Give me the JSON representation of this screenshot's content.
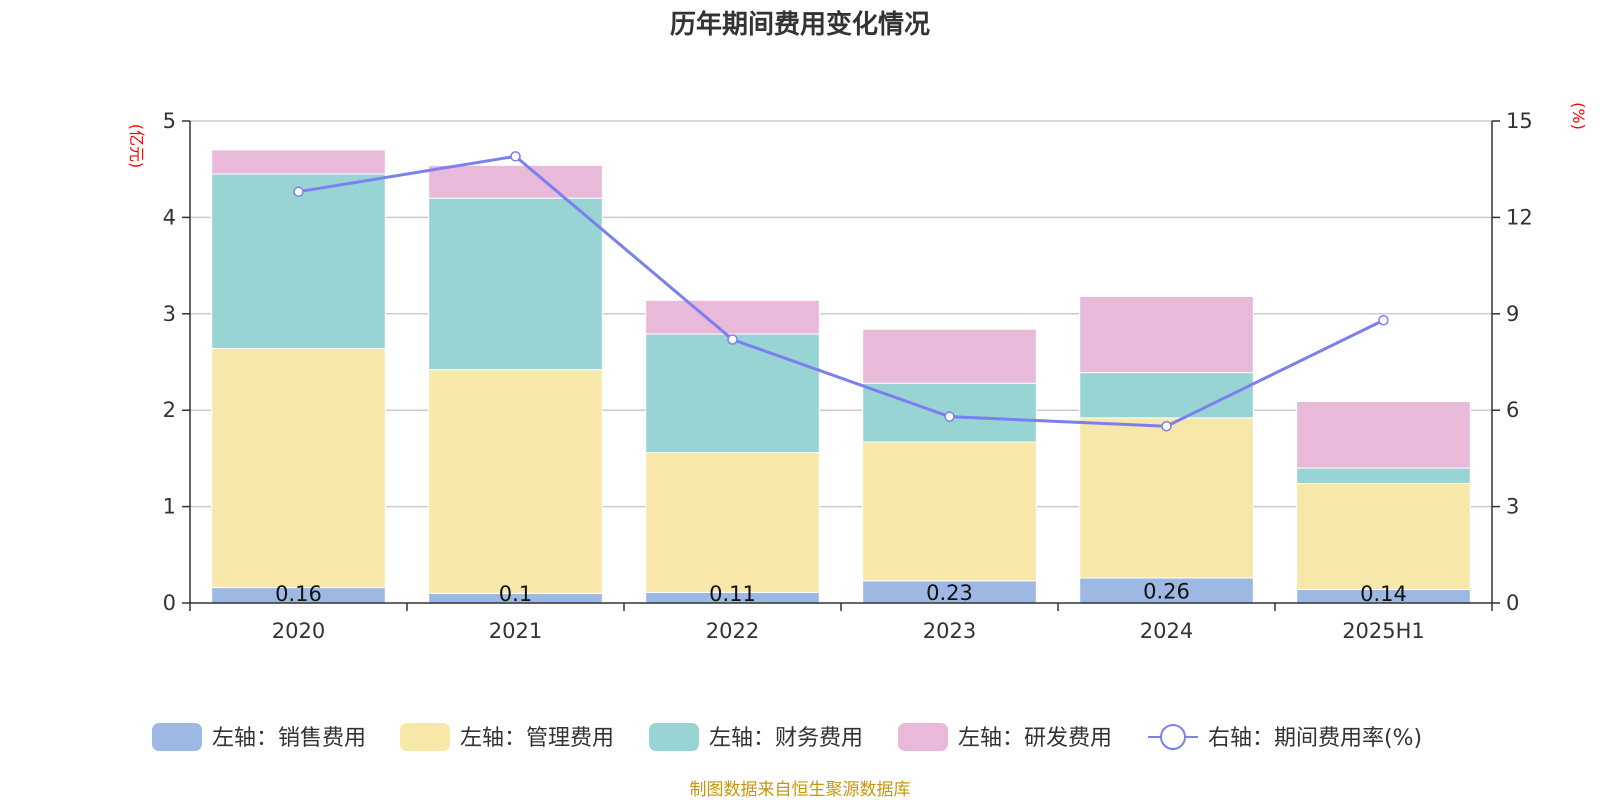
{
  "chart_data": {
    "type": "bar",
    "title": "历年期间费用变化情况",
    "categories": [
      "2020",
      "2021",
      "2022",
      "2023",
      "2024",
      "2025H1"
    ],
    "left_axis": {
      "unit": "(亿元)",
      "ylim": [
        0,
        5
      ],
      "ticks": [
        "0",
        "1",
        "2",
        "3",
        "4",
        "5"
      ]
    },
    "right_axis": {
      "unit": "(%)",
      "ylim": [
        0,
        15
      ],
      "ticks": [
        "0",
        "3",
        "6",
        "9",
        "12",
        "15"
      ]
    },
    "series": [
      {
        "name": "左轴：销售费用",
        "kind": "bar",
        "axis": "left",
        "color": "#9db8e3",
        "values": [
          0.16,
          0.1,
          0.11,
          0.23,
          0.26,
          0.14
        ],
        "labels": [
          "0.16",
          "0.1",
          "0.11",
          "0.23",
          "0.26",
          "0.14"
        ]
      },
      {
        "name": "左轴：管理费用",
        "kind": "bar",
        "axis": "left",
        "color": "#f7e7a8",
        "values": [
          2.48,
          2.32,
          1.45,
          1.44,
          1.66,
          1.1
        ]
      },
      {
        "name": "左轴：财务费用",
        "kind": "bar",
        "axis": "left",
        "color": "#98d4d4",
        "values": [
          1.81,
          1.78,
          1.23,
          0.61,
          0.47,
          0.16
        ]
      },
      {
        "name": "左轴：研发费用",
        "kind": "bar",
        "axis": "left",
        "color": "#e8b9d9",
        "values": [
          0.25,
          0.34,
          0.35,
          0.56,
          0.79,
          0.69
        ]
      },
      {
        "name": "右轴：期间费用率(%)",
        "kind": "line",
        "axis": "right",
        "color": "#7b7ff0",
        "values": [
          12.8,
          13.9,
          8.2,
          5.8,
          5.5,
          8.8
        ]
      }
    ],
    "grid": true,
    "legend": "bottom",
    "source": "制图数据来自恒生聚源数据库"
  }
}
